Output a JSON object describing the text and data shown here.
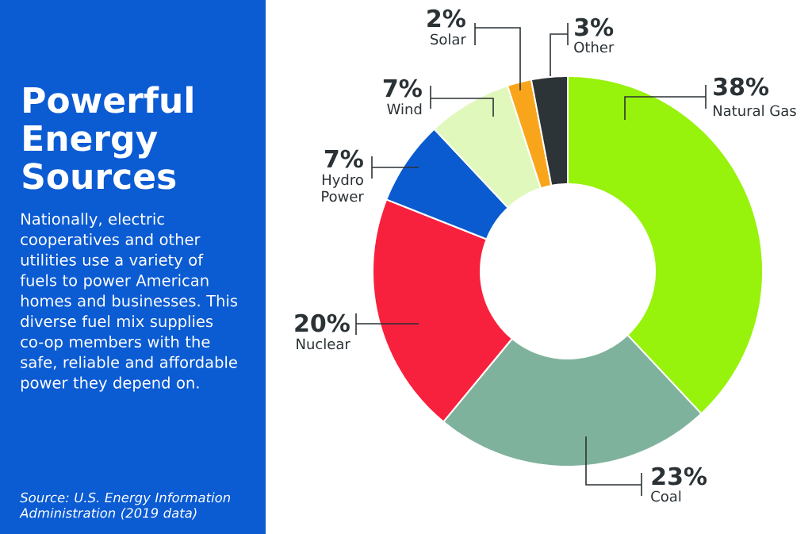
{
  "chart_data": {
    "type": "donut",
    "title": "Powerful Energy Sources",
    "subtitle": "Nationally, electric cooperatives and other utilities use a variety of fuels to power American homes and businesses. This diverse fuel mix supplies co-op members with the safe, reliable and affordable power they depend on.",
    "annotations": [
      "Source: U.S. Energy Information Administration (2019 data)"
    ],
    "categories": [
      "Natural Gas",
      "Coal",
      "Nuclear",
      "Hydro Power",
      "Wind",
      "Solar",
      "Other"
    ],
    "values": [
      38,
      23,
      20,
      7,
      7,
      2,
      3
    ],
    "value_labels": [
      "38%",
      "23%",
      "20%",
      "7%",
      "7%",
      "2%",
      "3%"
    ],
    "colors": [
      "#97f20c",
      "#7fb29c",
      "#f8213d",
      "#0a5bcf",
      "#e1f8bd",
      "#f9a51b",
      "#2d3438"
    ]
  }
}
